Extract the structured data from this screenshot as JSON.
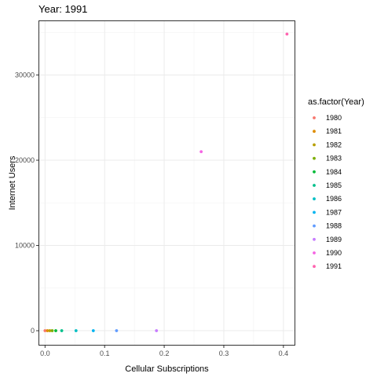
{
  "chart_data": {
    "type": "scatter",
    "title": "Year: 1991",
    "xlabel": "Cellular Subscriptions",
    "ylabel": "Internet Users",
    "xlim": [
      -0.011,
      0.42
    ],
    "ylim": [
      -1745,
      36400
    ],
    "x_ticks": [
      0.0,
      0.1,
      0.2,
      0.3,
      0.4
    ],
    "x_tick_labels": [
      "0.0",
      "0.1",
      "0.2",
      "0.3",
      "0.4"
    ],
    "y_ticks": [
      0,
      10000,
      20000,
      30000
    ],
    "y_tick_labels": [
      "0",
      "10000",
      "20000",
      "30000"
    ],
    "grid": true,
    "legend": {
      "title": "as.factor(Year)",
      "placement": "right",
      "entries": [
        "1980",
        "1981",
        "1982",
        "1983",
        "1984",
        "1985",
        "1986",
        "1987",
        "1988",
        "1989",
        "1990",
        "1991"
      ]
    },
    "colors": [
      "#F8766D",
      "#DE8C00",
      "#B79F00",
      "#7CAE00",
      "#00BA38",
      "#00C08B",
      "#00BFC4",
      "#00B4F0",
      "#619CFF",
      "#C77CFF",
      "#F564E3",
      "#FF64B0"
    ],
    "series": [
      {
        "name": "1980",
        "points": [
          {
            "x": 0.0,
            "y": 0
          }
        ]
      },
      {
        "name": "1981",
        "points": [
          {
            "x": 0.004,
            "y": 0
          }
        ]
      },
      {
        "name": "1982",
        "points": [
          {
            "x": 0.008,
            "y": 0
          }
        ]
      },
      {
        "name": "1983",
        "points": [
          {
            "x": 0.012,
            "y": 0
          }
        ]
      },
      {
        "name": "1984",
        "points": [
          {
            "x": 0.018,
            "y": 0
          }
        ]
      },
      {
        "name": "1985",
        "points": [
          {
            "x": 0.028,
            "y": 0
          }
        ]
      },
      {
        "name": "1986",
        "points": [
          {
            "x": 0.052,
            "y": 0
          }
        ]
      },
      {
        "name": "1987",
        "points": [
          {
            "x": 0.081,
            "y": 0
          }
        ]
      },
      {
        "name": "1988",
        "points": [
          {
            "x": 0.12,
            "y": 0
          }
        ]
      },
      {
        "name": "1989",
        "points": [
          {
            "x": 0.187,
            "y": 0
          }
        ]
      },
      {
        "name": "1990",
        "points": [
          {
            "x": 0.262,
            "y": 21000
          }
        ]
      },
      {
        "name": "1991",
        "points": [
          {
            "x": 0.406,
            "y": 34800
          }
        ]
      }
    ]
  }
}
